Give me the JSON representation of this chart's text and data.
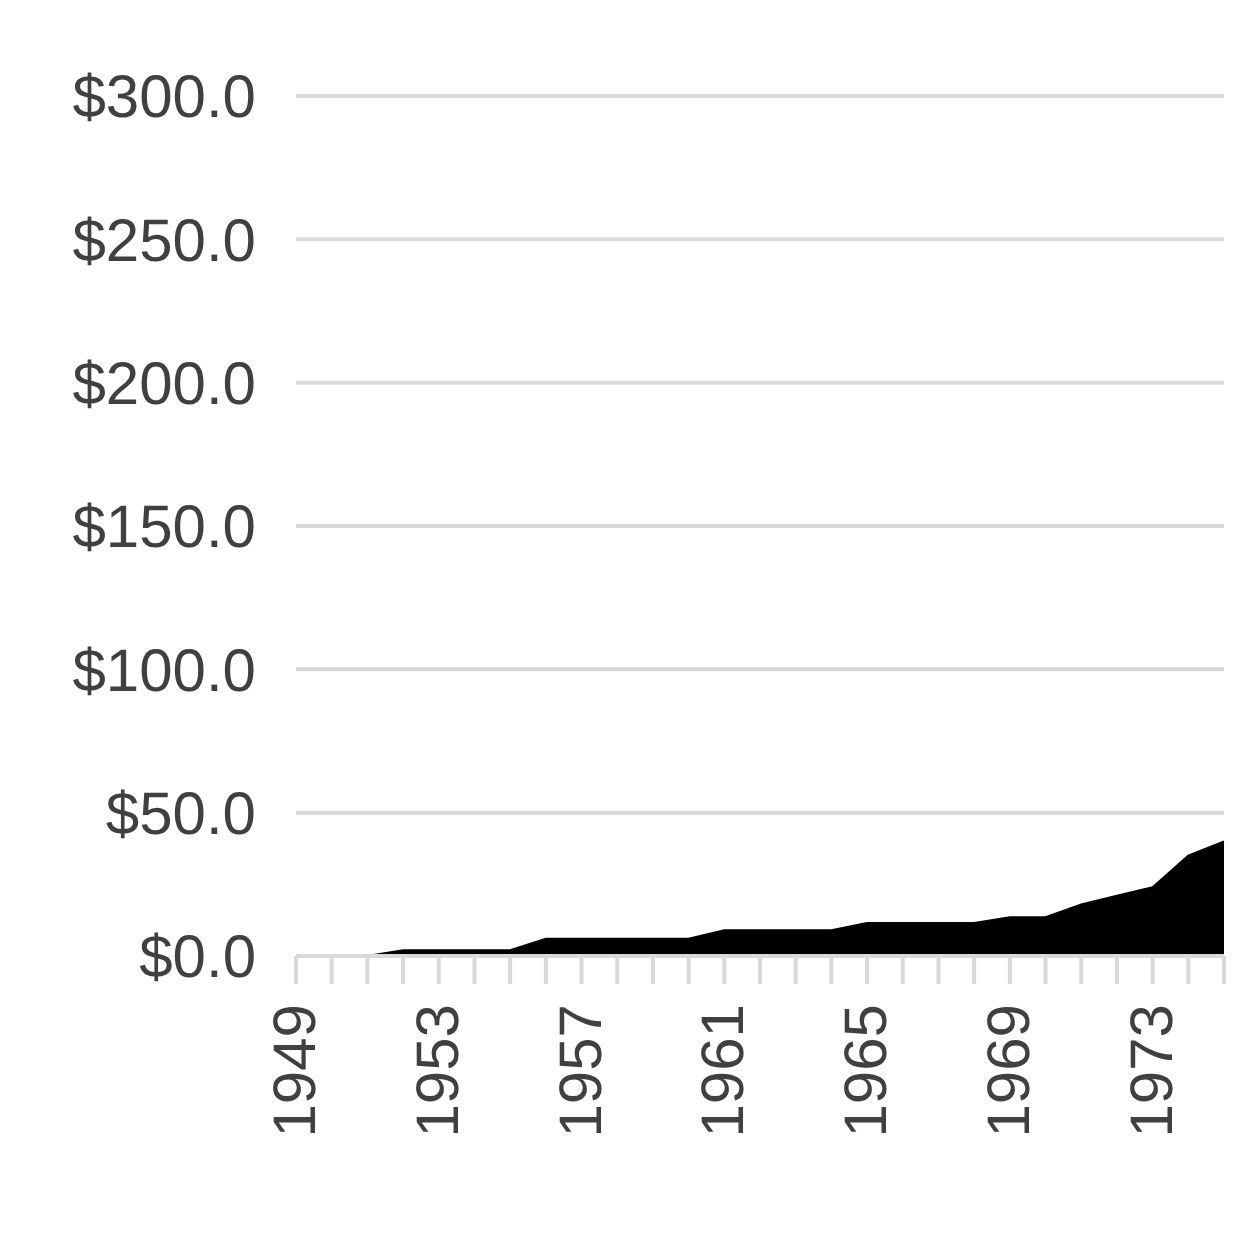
{
  "chart_data": {
    "type": "area",
    "categories": [
      "1949",
      null,
      null,
      null,
      "1953",
      null,
      null,
      null,
      "1957",
      null,
      null,
      null,
      "1961",
      null,
      null,
      null,
      "1965",
      null,
      null,
      null,
      "1969",
      null,
      null,
      null,
      "1973",
      null,
      null
    ],
    "series": [
      {
        "color": "#000000",
        "values": [
          0,
          0,
          0,
          2,
          2,
          2,
          2,
          6,
          6,
          6,
          6,
          6,
          9,
          9,
          9,
          9,
          11.5,
          11.5,
          11.5,
          11.5,
          13.5,
          13.5,
          18,
          21,
          24,
          35,
          40
        ]
      }
    ],
    "ylim": [
      0,
      300
    ],
    "yticks": [
      {
        "value": 0,
        "label": "$0.0"
      },
      {
        "value": 50,
        "label": "$50.0"
      },
      {
        "value": 100,
        "label": "$100.0"
      },
      {
        "value": 150,
        "label": "$150.0"
      },
      {
        "value": 200,
        "label": "$200.0"
      },
      {
        "value": 250,
        "label": "$250.0"
      },
      {
        "value": 300,
        "label": "$300.0"
      }
    ],
    "grid": "y",
    "legend": false
  }
}
